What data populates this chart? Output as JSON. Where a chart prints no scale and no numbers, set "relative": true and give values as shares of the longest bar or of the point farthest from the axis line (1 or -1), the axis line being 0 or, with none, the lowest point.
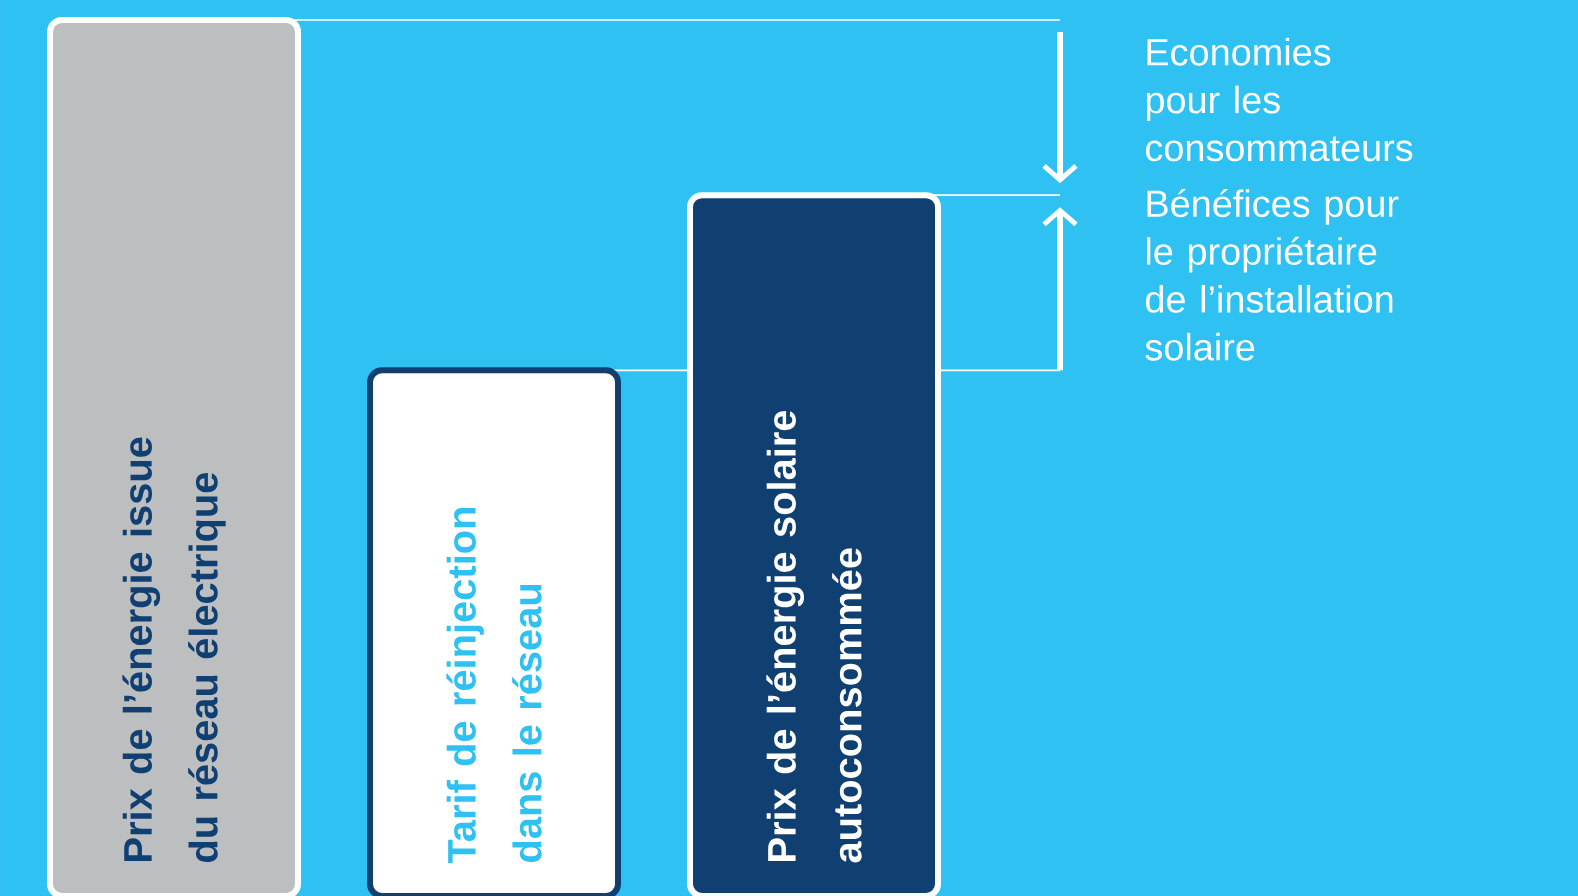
{
  "chart_data": {
    "type": "bar",
    "relative": true,
    "categories": [
      "Prix de l’énergie issue du réseau électrique",
      "Tarif de réinjection dans le réseau",
      "Prix de l’énergie solaire autoconsommée"
    ],
    "values": [
      1,
      0.6,
      0.8
    ],
    "colors": [
      "#bcbec0",
      "#ffffff",
      "#103f72"
    ],
    "ref_lines": [
      {
        "axis": "y",
        "value": 1,
        "color": "#ffffff"
      },
      {
        "axis": "y",
        "value": 0.8,
        "color": "#ffffff"
      },
      {
        "axis": "y",
        "value": 0.6,
        "color": "#ffffff"
      }
    ],
    "annotations": [
      "Economies pour les consommateurs",
      "Bénéfices pour le propriétaire de l’installation solaire"
    ]
  }
}
